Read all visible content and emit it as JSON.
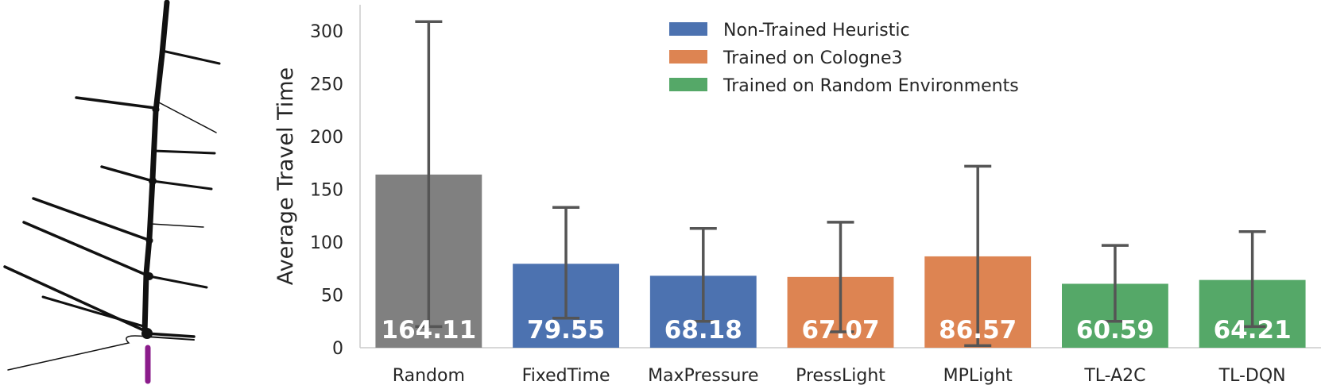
{
  "network_map": {
    "accent_color": "#111111",
    "highlight_color": "#8b1c8b"
  },
  "chart_data": {
    "type": "bar",
    "title": "",
    "xlabel": "",
    "ylabel": "Average Travel Time",
    "ylim": [
      0,
      325
    ],
    "yticks": [
      0,
      50,
      100,
      150,
      200,
      250,
      300
    ],
    "grid": false,
    "legend_position": "top-center",
    "categories": [
      "Random",
      "FixedTime",
      "MaxPressure",
      "PressLight",
      "MPLight",
      "TL-A2C",
      "TL-DQN"
    ],
    "values": [
      164.11,
      79.55,
      68.18,
      67.07,
      86.57,
      60.59,
      64.21
    ],
    "value_labels": [
      "164.11",
      "79.55",
      "68.18",
      "67.07",
      "86.57",
      "60.59",
      "64.21"
    ],
    "error_low": [
      20,
      28,
      25,
      15,
      2,
      25,
      20
    ],
    "error_high": [
      309,
      133,
      113,
      119,
      172,
      97,
      110
    ],
    "bar_groups": [
      null,
      "Non-Trained Heuristic",
      "Non-Trained Heuristic",
      "Trained on Cologne3",
      "Trained on Cologne3",
      "Trained on Random Environments",
      "Trained on Random Environments"
    ],
    "legend": [
      {
        "label": "Non-Trained Heuristic",
        "color": "#4c72b0"
      },
      {
        "label": "Trained on Cologne3",
        "color": "#dd8452"
      },
      {
        "label": "Trained on Random Environments",
        "color": "#55a868"
      }
    ],
    "default_color": "#808080",
    "errorbar_color": "#555555"
  }
}
